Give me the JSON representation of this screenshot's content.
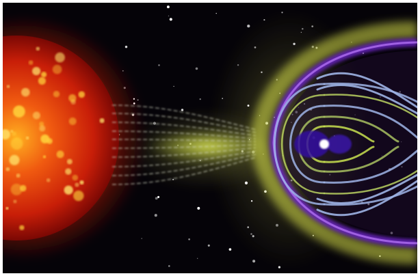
{
  "image": {
    "subject_icons": [
      "sun-icon",
      "earth-icon",
      "solar-wind-icon",
      "magnetosphere-icon",
      "star-icon"
    ],
    "colors": {
      "background": "#050308",
      "sun_core": "#ffd23a",
      "sun_mid": "#e0300a",
      "sun_edge": "#8a0a04",
      "wind": "#e6f04a",
      "field_lines": "#9fb4e6",
      "magnetopause": "#7a2ad0",
      "earth": "#ffffff"
    }
  }
}
